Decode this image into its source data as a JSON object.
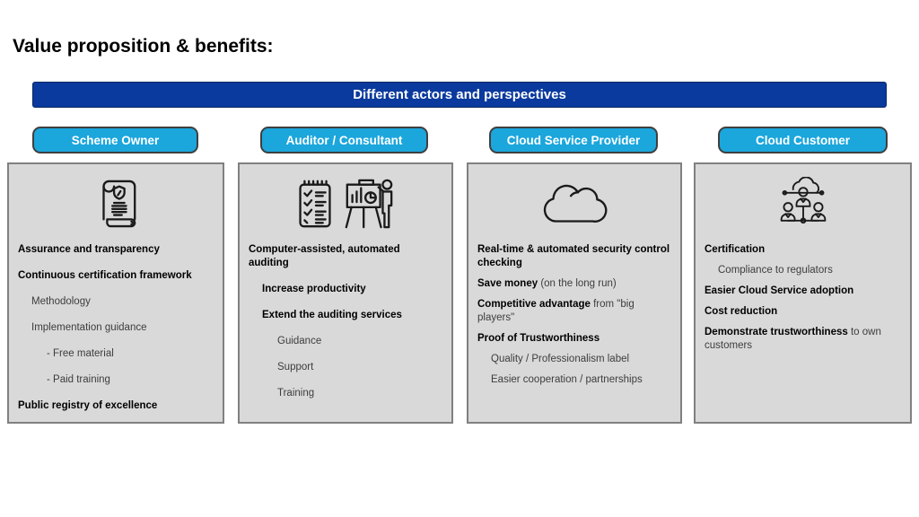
{
  "page": {
    "title": "Value proposition & benefits:"
  },
  "banner": {
    "label": "Different actors and perspectives",
    "bg_color": "#0b3a9e"
  },
  "colors": {
    "banner_bg": "#0b3a9e",
    "pill_bg": "#1ba6dc",
    "pill_border": "#3f3f3f",
    "box_bg": "#d9d9d9",
    "box_border": "#808080",
    "bold_text": "#000000",
    "regular_text": "#3d3d3d"
  },
  "actors": [
    {
      "label": "Scheme Owner",
      "icon": "certificate-scroll-icon",
      "lines": [
        {
          "level": 0,
          "segments": [
            {
              "text": "Assurance and transparency",
              "bold": true
            }
          ]
        },
        {
          "level": 0,
          "segments": [
            {
              "text": "Continuous certification framework",
              "bold": true
            }
          ]
        },
        {
          "level": 1,
          "segments": [
            {
              "text": "Methodology",
              "bold": false
            }
          ]
        },
        {
          "level": 1,
          "segments": [
            {
              "text": "Implementation guidance",
              "bold": false
            }
          ]
        },
        {
          "level": 2,
          "segments": [
            {
              "text": "- Free material",
              "bold": false
            }
          ]
        },
        {
          "level": 2,
          "segments": [
            {
              "text": "- Paid training",
              "bold": false
            }
          ]
        },
        {
          "level": 0,
          "segments": [
            {
              "text": "Public registry of excellence",
              "bold": true
            }
          ]
        }
      ]
    },
    {
      "label": "Auditor / Consultant",
      "icon": "checklist-and-presenter-icon",
      "lines": [
        {
          "level": 0,
          "segments": [
            {
              "text": "Computer-assisted, automated auditing",
              "bold": true
            }
          ]
        },
        {
          "level": 1,
          "segments": [
            {
              "text": "Increase productivity",
              "bold": true
            }
          ]
        },
        {
          "level": 1,
          "segments": [
            {
              "text": "Extend the auditing services",
              "bold": true
            }
          ]
        },
        {
          "level": 2,
          "segments": [
            {
              "text": "Guidance",
              "bold": false
            }
          ]
        },
        {
          "level": 2,
          "segments": [
            {
              "text": "Support",
              "bold": false
            }
          ]
        },
        {
          "level": 2,
          "segments": [
            {
              "text": "Training",
              "bold": false
            }
          ]
        }
      ]
    },
    {
      "label": "Cloud Service Provider",
      "icon": "cloud-icon",
      "lines": [
        {
          "level": 0,
          "segments": [
            {
              "text": "Real-time & automated security control checking",
              "bold": true
            }
          ]
        },
        {
          "level": 0,
          "segments": [
            {
              "text": "Save money",
              "bold": true
            },
            {
              "text": " (on the long run)",
              "bold": false
            }
          ]
        },
        {
          "level": 0,
          "segments": [
            {
              "text": "Competitive advantage",
              "bold": true
            },
            {
              "text": " from \"big players\"",
              "bold": false
            }
          ]
        },
        {
          "level": 0,
          "segments": [
            {
              "text": "Proof of Trustworthiness",
              "bold": true
            }
          ]
        },
        {
          "level": 1,
          "segments": [
            {
              "text": "Quality / Professionalism label",
              "bold": false
            }
          ]
        },
        {
          "level": 1,
          "segments": [
            {
              "text": "Easier cooperation / partnerships",
              "bold": false
            }
          ]
        }
      ]
    },
    {
      "label": "Cloud Customer",
      "icon": "cloud-community-icon",
      "lines": [
        {
          "level": 0,
          "segments": [
            {
              "text": "Certification",
              "bold": true
            }
          ]
        },
        {
          "level": 1,
          "segments": [
            {
              "text": "Compliance to regulators",
              "bold": false
            }
          ]
        },
        {
          "level": 0,
          "segments": [
            {
              "text": "Easier Cloud Service adoption",
              "bold": true
            }
          ]
        },
        {
          "level": 0,
          "segments": [
            {
              "text": "Cost reduction",
              "bold": true
            }
          ]
        },
        {
          "level": 0,
          "segments": [
            {
              "text": "Demonstrate trustworthiness",
              "bold": true
            },
            {
              "text": " to own customers",
              "bold": false
            }
          ]
        }
      ]
    }
  ]
}
